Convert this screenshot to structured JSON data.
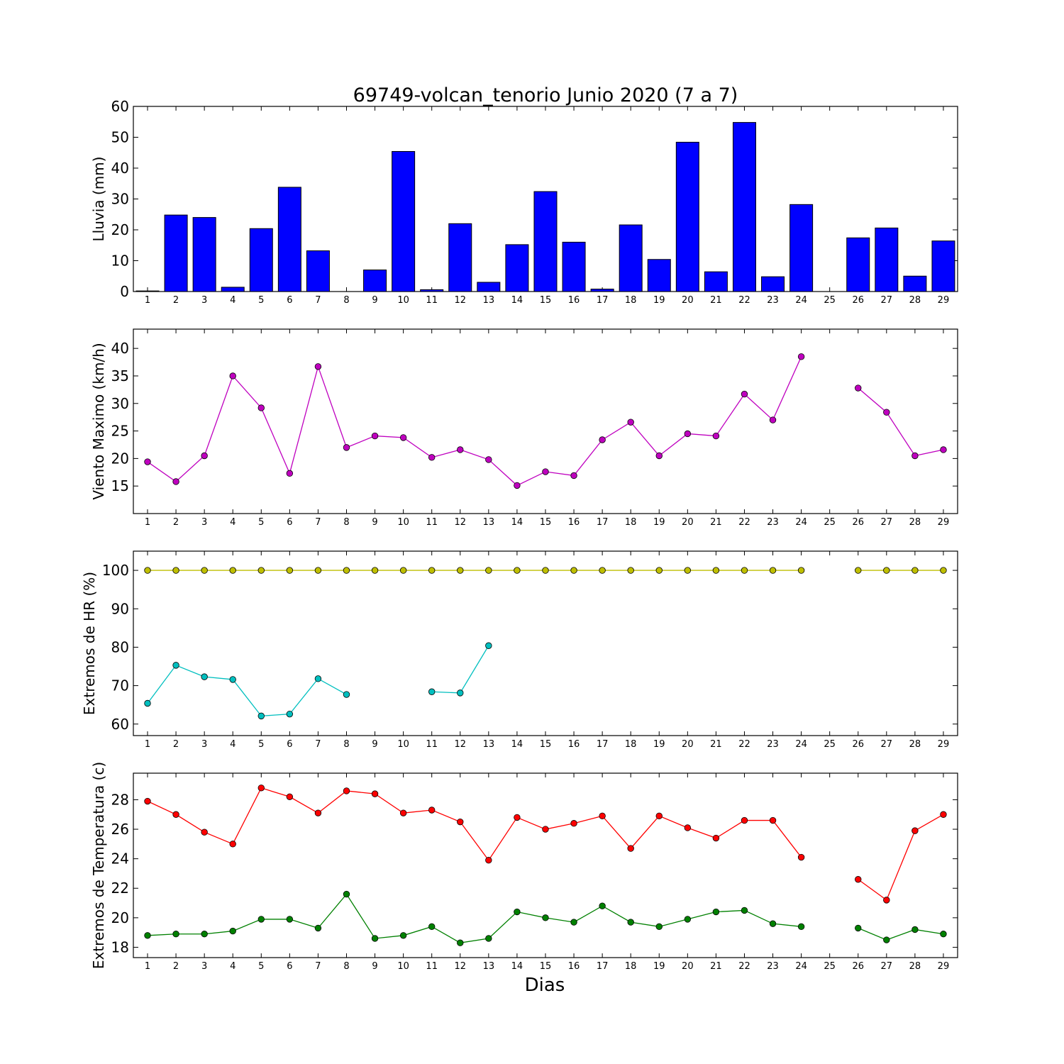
{
  "chart_data": [
    {
      "type": "bar",
      "title": "69749-volcan_tenorio Junio 2020  (7 a 7)",
      "ylabel": "Lluvia (mm)",
      "xlabel": "",
      "ylim": [
        0,
        60
      ],
      "yticks": [
        0,
        10,
        20,
        30,
        40,
        50,
        60
      ],
      "categories": [
        "1",
        "2",
        "3",
        "4",
        "5",
        "6",
        "7",
        "8",
        "9",
        "10",
        "11",
        "12",
        "13",
        "14",
        "15",
        "16",
        "17",
        "18",
        "19",
        "20",
        "21",
        "22",
        "23",
        "24",
        "25",
        "26",
        "27",
        "28",
        "29"
      ],
      "series": [
        {
          "color": "#0000ff",
          "values": [
            0.2,
            24.8,
            24.0,
            1.4,
            20.4,
            33.8,
            13.2,
            0,
            7.0,
            45.4,
            0.6,
            22.0,
            3.0,
            15.2,
            32.4,
            16.0,
            0.8,
            21.6,
            10.4,
            48.4,
            6.4,
            54.8,
            4.8,
            28.2,
            null,
            17.4,
            20.6,
            5.0,
            16.4
          ]
        }
      ]
    },
    {
      "type": "line",
      "title": "",
      "ylabel": "Viento Maximo (km/h)",
      "xlabel": "",
      "ylim": [
        10,
        43.5
      ],
      "yticks": [
        15,
        20,
        25,
        30,
        35,
        40
      ],
      "categories": [
        "1",
        "2",
        "3",
        "4",
        "5",
        "6",
        "7",
        "8",
        "9",
        "10",
        "11",
        "12",
        "13",
        "14",
        "15",
        "16",
        "17",
        "18",
        "19",
        "20",
        "21",
        "22",
        "23",
        "24",
        "25",
        "26",
        "27",
        "28",
        "29"
      ],
      "series": [
        {
          "color": "#bf00bf",
          "values": [
            19.4,
            15.8,
            20.5,
            35.0,
            29.2,
            17.3,
            36.7,
            22.0,
            24.1,
            23.8,
            20.2,
            21.6,
            19.8,
            15.1,
            17.6,
            16.9,
            23.4,
            26.6,
            20.5,
            24.5,
            24.1,
            31.7,
            27.0,
            38.5,
            null,
            32.8,
            28.4,
            20.5,
            21.6
          ]
        }
      ]
    },
    {
      "type": "line",
      "title": "",
      "ylabel": "Extremos de HR (%)",
      "xlabel": "",
      "ylim": [
        57,
        105
      ],
      "yticks": [
        60,
        70,
        80,
        90,
        100
      ],
      "categories": [
        "1",
        "2",
        "3",
        "4",
        "5",
        "6",
        "7",
        "8",
        "9",
        "10",
        "11",
        "12",
        "13",
        "14",
        "15",
        "16",
        "17",
        "18",
        "19",
        "20",
        "21",
        "22",
        "23",
        "24",
        "25",
        "26",
        "27",
        "28",
        "29"
      ],
      "series": [
        {
          "color": "#bfbf00",
          "values": [
            100,
            100,
            100,
            100,
            100,
            100,
            100,
            100,
            100,
            100,
            100,
            100,
            100,
            100,
            100,
            100,
            100,
            100,
            100,
            100,
            100,
            100,
            100,
            100,
            null,
            100,
            100,
            100,
            100
          ]
        },
        {
          "color": "#00bfbf",
          "values": [
            65.4,
            75.3,
            72.3,
            71.6,
            62.1,
            62.6,
            71.8,
            67.7,
            null,
            null,
            68.4,
            68.1,
            80.4,
            null,
            null,
            null,
            null,
            null,
            null,
            null,
            null,
            null,
            null,
            null,
            null,
            null,
            null,
            null,
            null
          ]
        }
      ]
    },
    {
      "type": "line",
      "title": "",
      "ylabel": "Extremos de Temperatura (c)",
      "xlabel": "Dias",
      "ylim": [
        17.3,
        29.8
      ],
      "yticks": [
        18,
        20,
        22,
        24,
        26,
        28
      ],
      "categories": [
        "1",
        "2",
        "3",
        "4",
        "5",
        "6",
        "7",
        "8",
        "9",
        "10",
        "11",
        "12",
        "13",
        "14",
        "15",
        "16",
        "17",
        "18",
        "19",
        "20",
        "21",
        "22",
        "23",
        "24",
        "25",
        "26",
        "27",
        "28",
        "29"
      ],
      "series": [
        {
          "color": "#ff0000",
          "values": [
            27.9,
            27.0,
            25.8,
            25.0,
            28.8,
            28.2,
            27.1,
            28.6,
            28.4,
            27.1,
            27.3,
            26.5,
            23.9,
            26.8,
            26.0,
            26.4,
            26.9,
            24.7,
            26.9,
            26.1,
            25.4,
            26.6,
            26.6,
            24.1,
            null,
            22.6,
            21.2,
            25.9,
            27.0
          ]
        },
        {
          "color": "#008000",
          "values": [
            18.8,
            18.9,
            18.9,
            19.1,
            19.9,
            19.9,
            19.3,
            21.6,
            18.6,
            18.8,
            19.4,
            18.3,
            18.6,
            20.4,
            20.0,
            19.7,
            20.8,
            19.7,
            19.4,
            19.9,
            20.4,
            20.5,
            19.6,
            19.4,
            null,
            19.3,
            18.5,
            19.2,
            18.9
          ]
        }
      ]
    }
  ]
}
